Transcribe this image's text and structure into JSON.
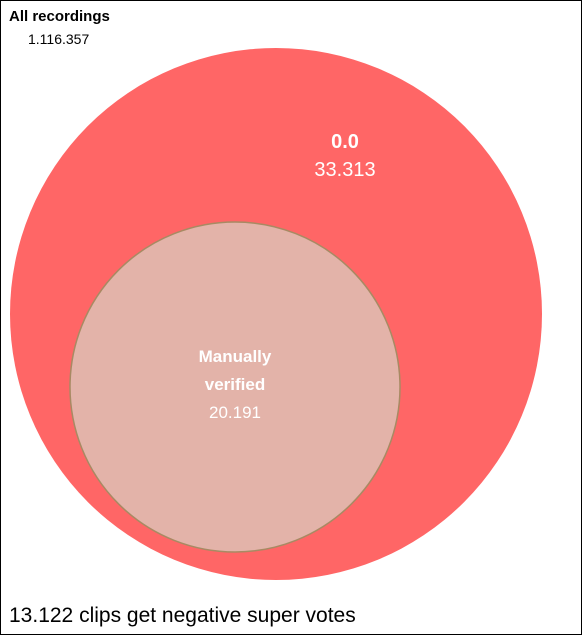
{
  "all_recordings": {
    "label": "All recordings",
    "count": "1.116.357"
  },
  "outer_set": {
    "label": "0.0",
    "count": "33.313",
    "color": "#ff6666"
  },
  "inner_set": {
    "label_line1": "Manually",
    "label_line2": "verified",
    "count": "20.191",
    "color": "#e3b3a9",
    "stroke": "#a88a63"
  },
  "footer": {
    "text": "13.122 clips get negative super votes"
  }
}
